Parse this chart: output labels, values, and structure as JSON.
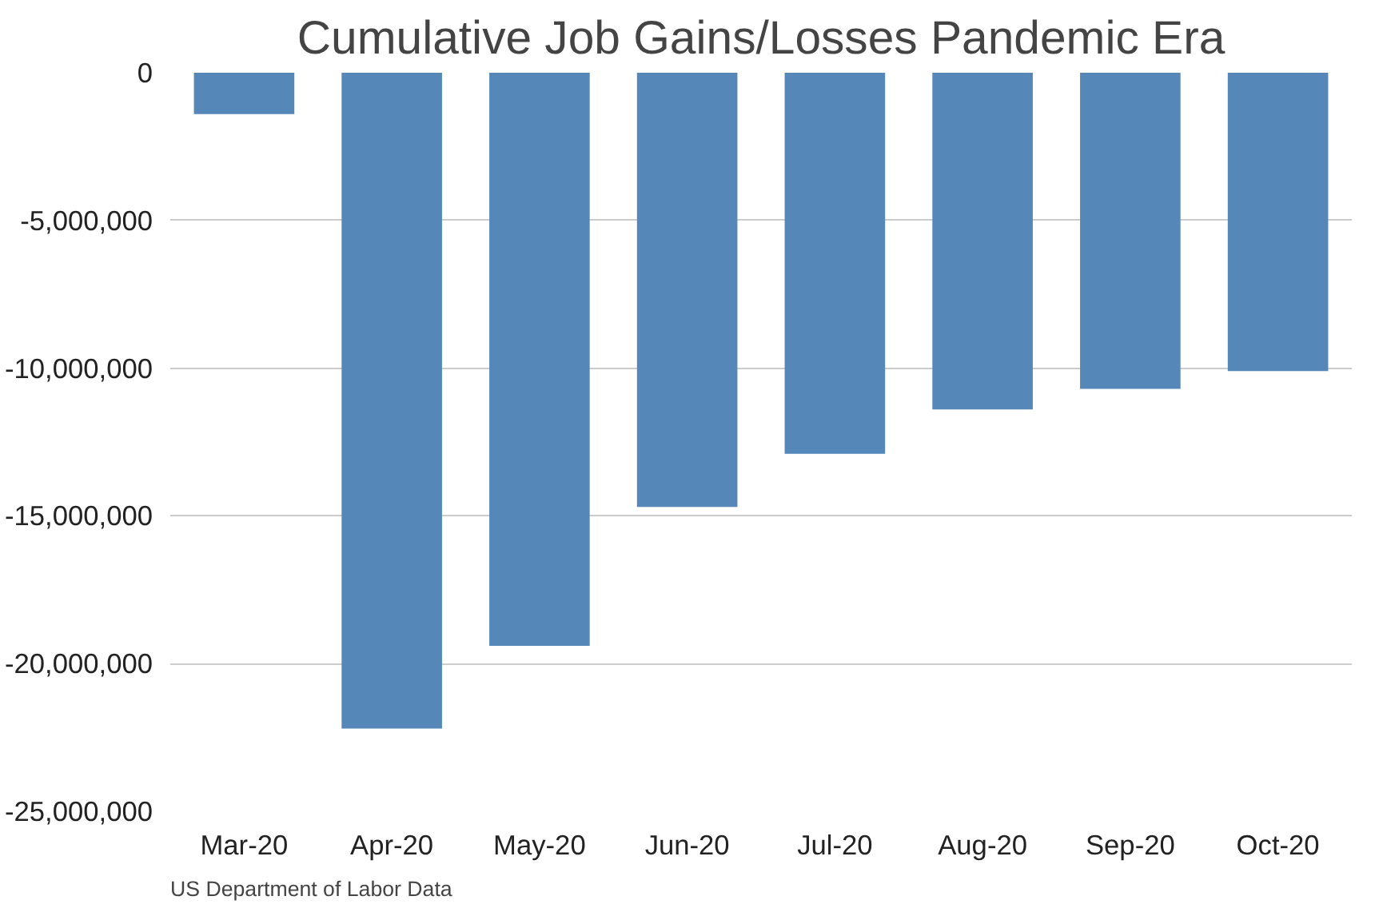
{
  "chart_data": {
    "type": "bar",
    "title": "Cumulative Job Gains/Losses Pandemic Era",
    "categories": [
      "Mar-20",
      "Apr-20",
      "May-20",
      "Jun-20",
      "Jul-20",
      "Aug-20",
      "Sep-20",
      "Oct-20"
    ],
    "values": [
      -1400000,
      -22200000,
      -19400000,
      -14700000,
      -12900000,
      -11400000,
      -10700000,
      -10100000
    ],
    "color": "#5588b8",
    "ylim": [
      -25000000,
      0
    ],
    "yticks": [
      {
        "value": 0,
        "label": "0"
      },
      {
        "value": -5000000,
        "label": "-5,000,000"
      },
      {
        "value": -10000000,
        "label": "-10,000,000"
      },
      {
        "value": -15000000,
        "label": "-15,000,000"
      },
      {
        "value": -20000000,
        "label": "-20,000,000"
      },
      {
        "value": -25000000,
        "label": "-25,000,000"
      }
    ],
    "grid": "y",
    "annotations": [
      "US Department of Labor Data"
    ]
  }
}
